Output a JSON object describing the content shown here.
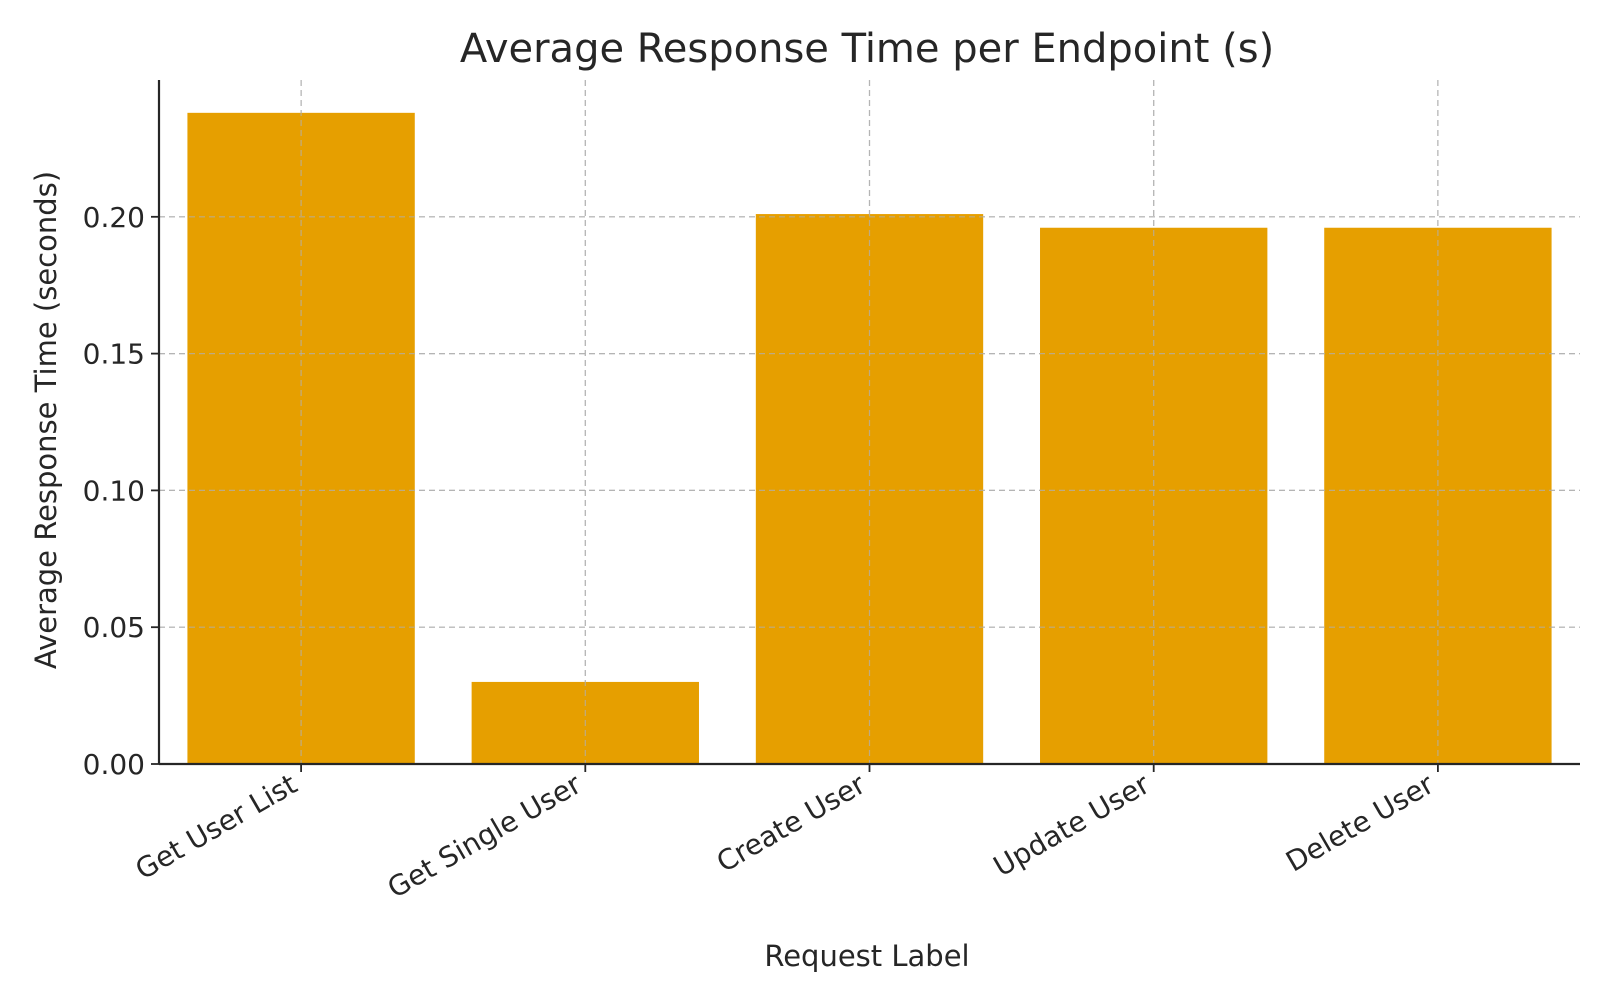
{
  "chart_data": {
    "type": "bar",
    "title": "Average Response Time per Endpoint (s)",
    "xlabel": "Request Label",
    "ylabel": "Average Response Time (seconds)",
    "categories": [
      "Get User List",
      "Get Single User",
      "Create User",
      "Update User",
      "Delete User"
    ],
    "values": [
      0.238,
      0.03,
      0.201,
      0.196,
      0.196
    ],
    "ylim": [
      0,
      0.25
    ],
    "yticks": [
      "0.00",
      "0.05",
      "0.10",
      "0.15",
      "0.20"
    ],
    "ytick_values": [
      0,
      0.05,
      0.1,
      0.15,
      0.2
    ],
    "grid": true,
    "legend": "none",
    "bar_color": "#E69F00"
  }
}
